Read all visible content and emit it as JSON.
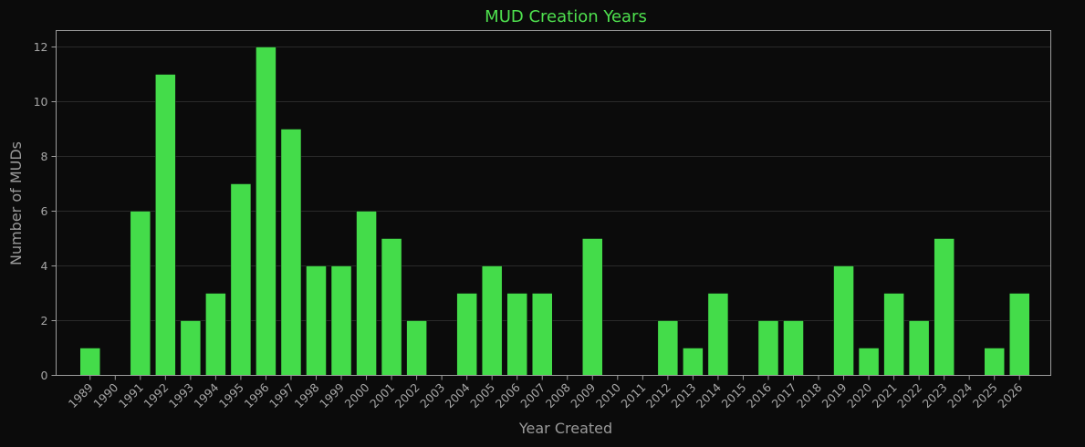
{
  "chart_data": {
    "type": "bar",
    "title": "MUD Creation Years",
    "xlabel": "Year Created",
    "ylabel": "Number of MUDs",
    "categories": [
      "1989",
      "1990",
      "1991",
      "1992",
      "1993",
      "1994",
      "1995",
      "1996",
      "1997",
      "1998",
      "1999",
      "2000",
      "2001",
      "2002",
      "2003",
      "2004",
      "2005",
      "2006",
      "2007",
      "2008",
      "2009",
      "2010",
      "2011",
      "2012",
      "2013",
      "2014",
      "2015",
      "2016",
      "2017",
      "2018",
      "2019",
      "2020",
      "2021",
      "2022",
      "2023",
      "2024",
      "2025",
      "2026"
    ],
    "values": [
      1,
      0,
      6,
      11,
      2,
      3,
      7,
      12,
      9,
      4,
      4,
      6,
      5,
      2,
      0,
      3,
      4,
      3,
      3,
      0,
      5,
      0,
      0,
      2,
      1,
      3,
      0,
      2,
      2,
      0,
      4,
      1,
      3,
      2,
      5,
      0,
      1,
      3
    ],
    "ylim": [
      0,
      12.6
    ],
    "yticks": [
      0,
      2,
      4,
      6,
      8,
      10,
      12
    ],
    "grid": true,
    "colors": {
      "bar": "#44dc4a",
      "title": "#4ee04e",
      "background": "#0b0b0b",
      "text": "#a6a6a6",
      "grid": "#2a2a2a"
    }
  }
}
